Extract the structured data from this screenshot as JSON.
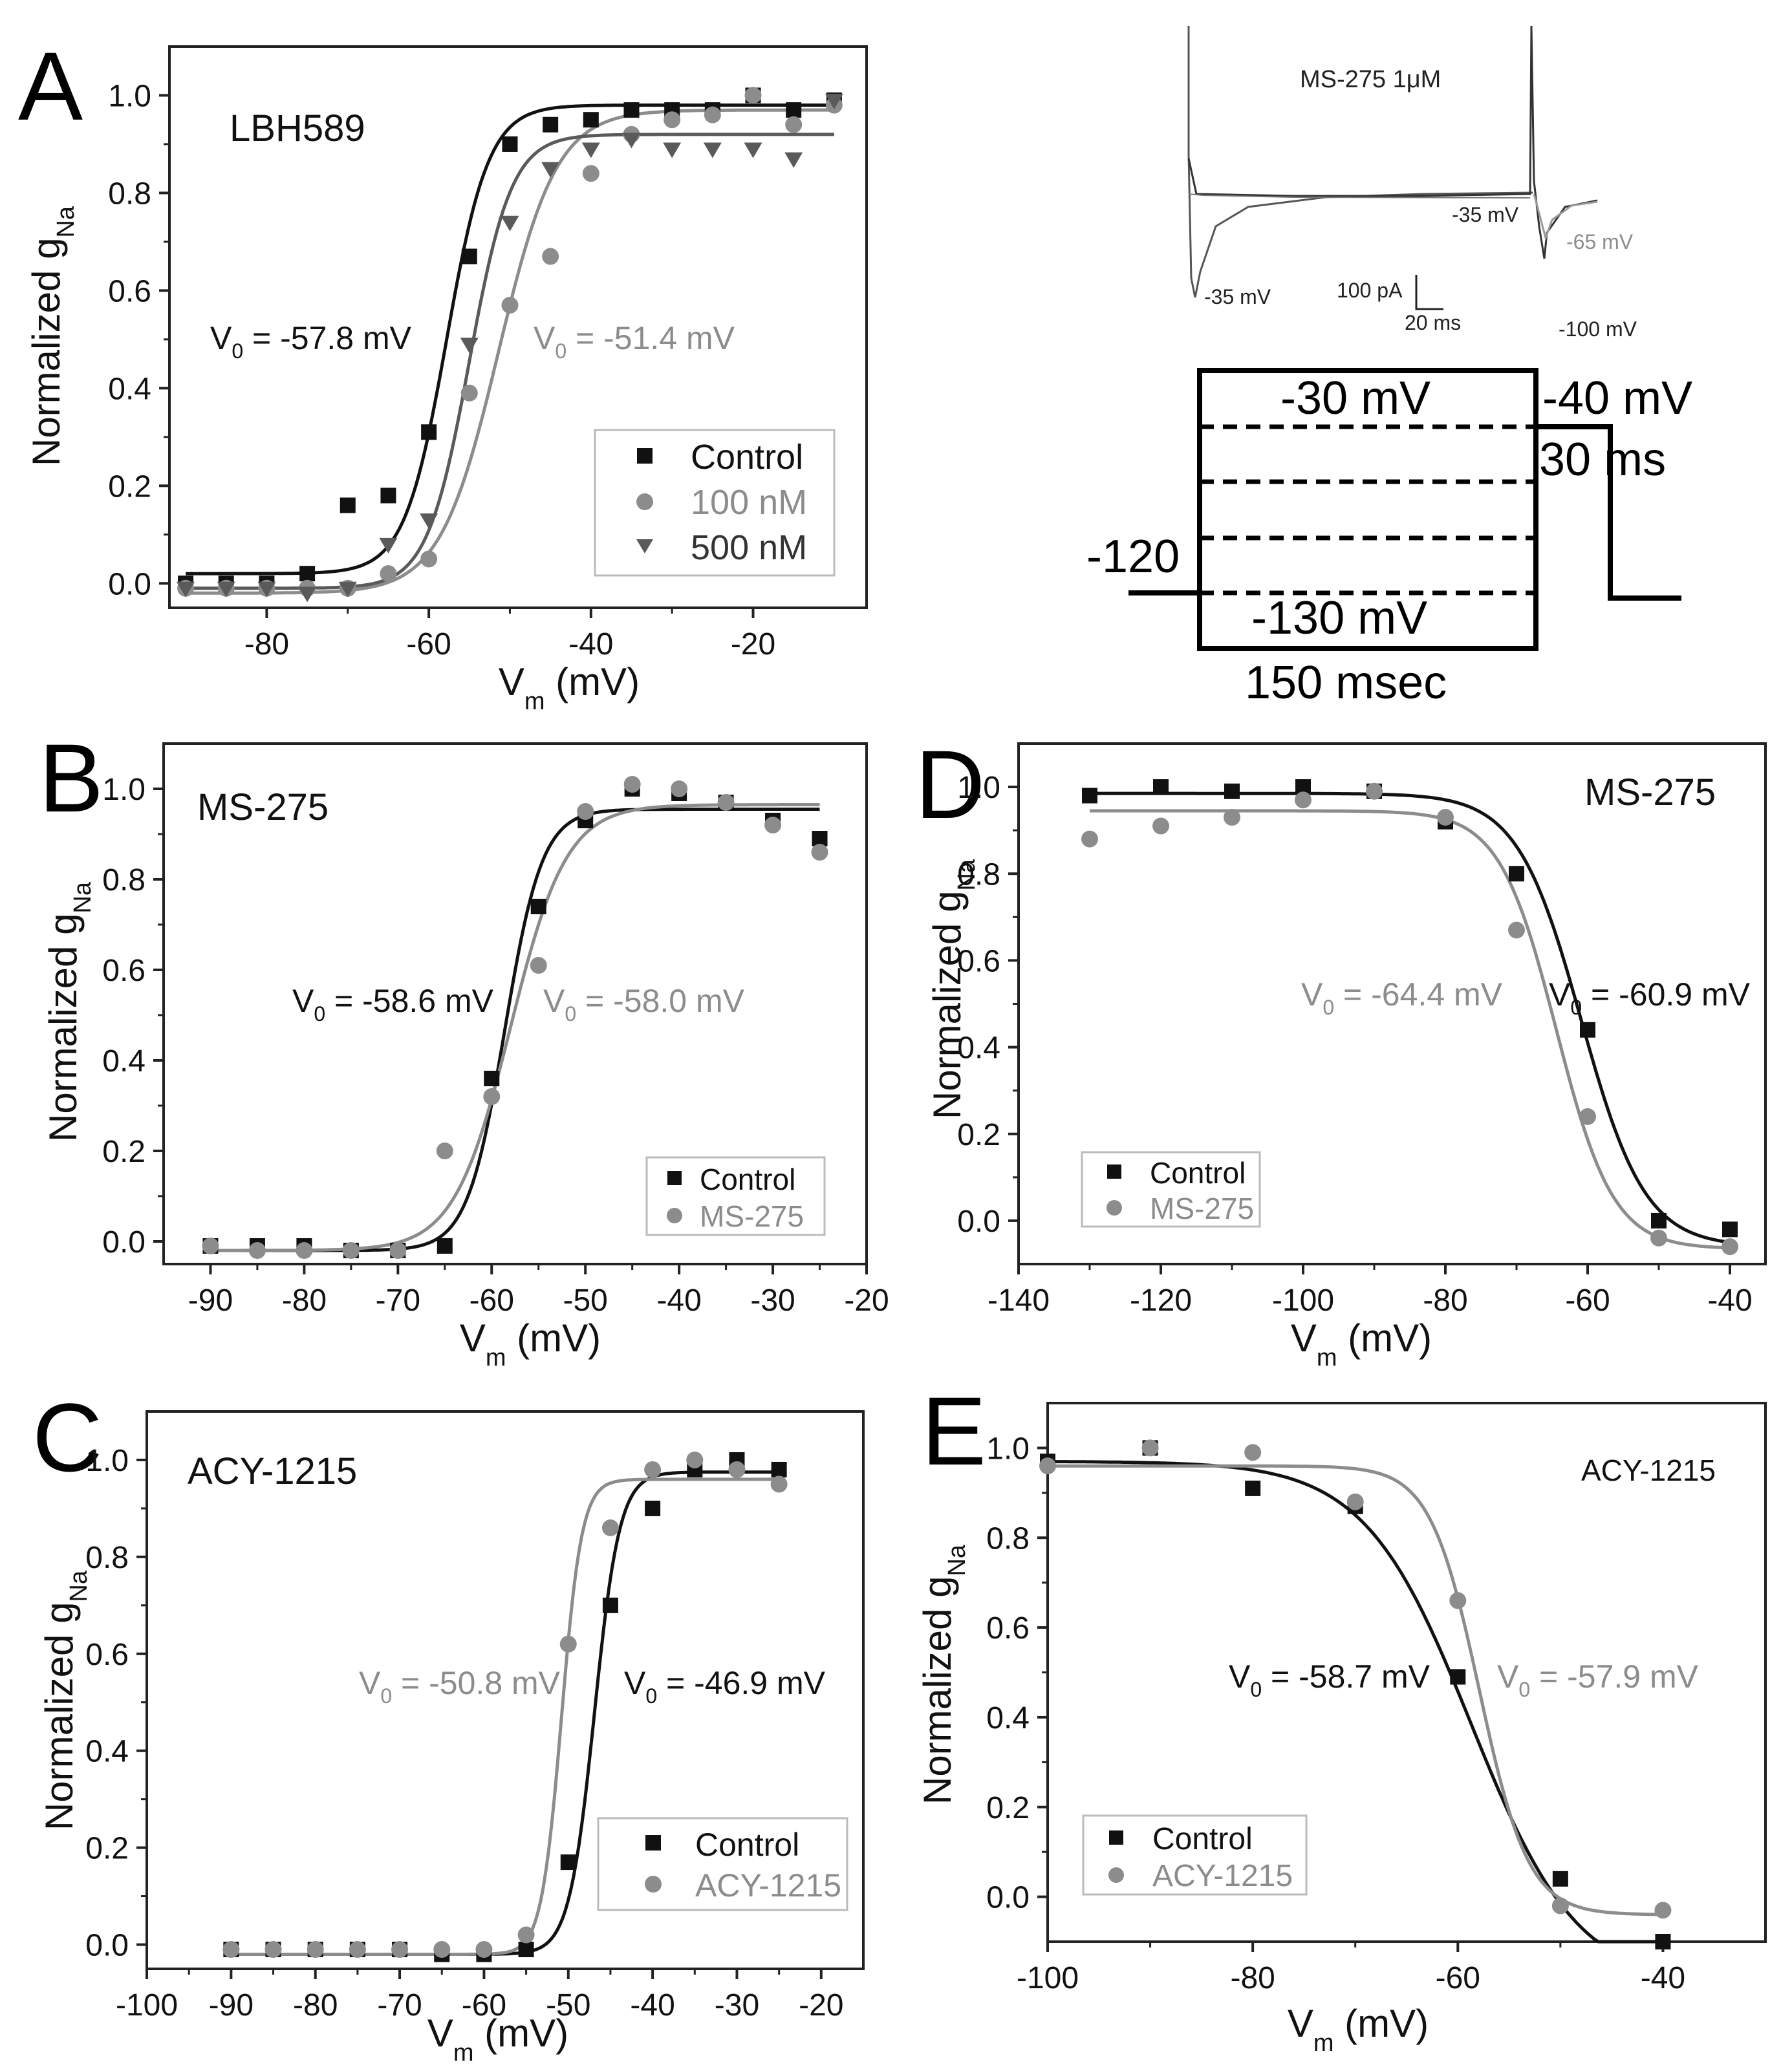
{
  "colors": {
    "black": "#111111",
    "gray": "#8c8c8c",
    "darkgray": "#5a5a5a"
  },
  "chart_data": [
    {
      "id": "A",
      "type": "scatter",
      "panel_letter": "A",
      "title": "LBH589",
      "xlabel_main": "V",
      "xlabel_sub": "m",
      "xlabel_unit": " (mV)",
      "ylabel_main": "Normalized g",
      "ylabel_sub": "Na",
      "xlim": [
        -92,
        -6
      ],
      "ylim": [
        -0.05,
        1.1
      ],
      "xticks": [
        -80,
        -60,
        -40,
        -20
      ],
      "yticks": [
        0.0,
        0.2,
        0.4,
        0.6,
        0.8,
        1.0
      ],
      "xtick_labels": [
        "-80",
        "-60",
        "-40",
        "-20"
      ],
      "ytick_labels": [
        "0.0",
        "0.2",
        "0.4",
        "0.6",
        "0.8",
        "1.0"
      ],
      "legend_position": "bottom-right",
      "series": [
        {
          "name": "Control",
          "marker": "square",
          "color": "#111111",
          "x": [
            -90,
            -85,
            -80,
            -75,
            -70,
            -65,
            -60,
            -55,
            -50,
            -45,
            -40,
            -35,
            -30,
            -25,
            -20,
            -15,
            -10
          ],
          "y": [
            0.0,
            0.0,
            0.0,
            0.02,
            0.16,
            0.18,
            0.31,
            0.67,
            0.9,
            0.94,
            0.95,
            0.97,
            0.97,
            0.97,
            1.0,
            0.97,
            0.99
          ],
          "fit": {
            "bottom": 0.02,
            "top": 0.98,
            "v0": -57.8,
            "k": 2.6,
            "direction": "up"
          },
          "v0_label": "-57.8 mV"
        },
        {
          "name": "100 nM",
          "marker": "circle",
          "color": "#8c8c8c",
          "x": [
            -90,
            -85,
            -80,
            -75,
            -70,
            -65,
            -60,
            -55,
            -50,
            -45,
            -40,
            -35,
            -30,
            -25,
            -20,
            -15,
            -10
          ],
          "y": [
            -0.01,
            -0.01,
            -0.01,
            -0.01,
            -0.01,
            0.02,
            0.05,
            0.39,
            0.57,
            0.67,
            0.84,
            0.92,
            0.95,
            0.96,
            1.0,
            0.94,
            0.98
          ],
          "fit": {
            "bottom": -0.02,
            "top": 0.97,
            "v0": -51.4,
            "k": 3.6,
            "direction": "up"
          },
          "v0_label": "-51.4 mV"
        },
        {
          "name": "500 nM",
          "marker": "triangle-down",
          "color": "#5a5a5a",
          "x": [
            -90,
            -85,
            -80,
            -75,
            -70,
            -65,
            -60,
            -55,
            -50,
            -45,
            -40,
            -35,
            -30,
            -25,
            -20,
            -15,
            -10
          ],
          "y": [
            -0.01,
            -0.01,
            -0.01,
            -0.02,
            -0.01,
            0.08,
            0.13,
            0.49,
            0.74,
            0.85,
            0.89,
            0.91,
            0.89,
            0.89,
            0.89,
            0.87,
            0.99
          ],
          "fit": {
            "bottom": -0.01,
            "top": 0.92,
            "v0": -55.0,
            "k": 2.6,
            "direction": "up"
          }
        }
      ]
    },
    {
      "id": "B",
      "type": "scatter",
      "panel_letter": "B",
      "title": "MS-275",
      "xlabel_main": "V",
      "xlabel_sub": "m",
      "xlabel_unit": " (mV)",
      "ylabel_main": "Normalized g",
      "ylabel_sub": "Na",
      "xlim": [
        -95,
        -20
      ],
      "ylim": [
        -0.05,
        1.1
      ],
      "xticks": [
        -90,
        -80,
        -70,
        -60,
        -50,
        -40,
        -30,
        -20
      ],
      "yticks": [
        0.0,
        0.2,
        0.4,
        0.6,
        0.8,
        1.0
      ],
      "xtick_labels": [
        "-90",
        "-80",
        "-70",
        "-60",
        "-50",
        "-40",
        "-30",
        "-20"
      ],
      "ytick_labels": [
        "0.0",
        "0.2",
        "0.4",
        "0.6",
        "0.8",
        "1.0"
      ],
      "legend_position": "bottom-right",
      "series": [
        {
          "name": "Control",
          "marker": "square",
          "color": "#111111",
          "x": [
            -90,
            -85,
            -80,
            -75,
            -70,
            -65,
            -60,
            -55,
            -50,
            -45,
            -40,
            -35,
            -30,
            -25
          ],
          "y": [
            -0.01,
            -0.01,
            -0.01,
            -0.02,
            -0.02,
            -0.01,
            0.36,
            0.74,
            0.93,
            1.0,
            0.99,
            0.97,
            0.93,
            0.89
          ],
          "fit": {
            "bottom": -0.02,
            "top": 0.955,
            "v0": -58.6,
            "k": 2.0,
            "direction": "up"
          },
          "v0_label": "-58.6 mV"
        },
        {
          "name": "MS-275",
          "marker": "circle",
          "color": "#8c8c8c",
          "x": [
            -90,
            -85,
            -80,
            -75,
            -70,
            -65,
            -60,
            -55,
            -50,
            -45,
            -40,
            -35,
            -30,
            -25
          ],
          "y": [
            -0.01,
            -0.02,
            -0.02,
            -0.02,
            -0.02,
            0.2,
            0.32,
            0.61,
            0.95,
            1.01,
            1.0,
            0.97,
            0.92,
            0.86
          ],
          "fit": {
            "bottom": -0.02,
            "top": 0.965,
            "v0": -58.0,
            "k": 3.0,
            "direction": "up"
          },
          "v0_label": "-58.0 mV"
        }
      ]
    },
    {
      "id": "C",
      "type": "scatter",
      "panel_letter": "C",
      "title": "ACY-1215",
      "xlabel_main": "V",
      "xlabel_sub": "m",
      "xlabel_unit": " (mV)",
      "ylabel_main": "Normalized g",
      "ylabel_sub": "Na",
      "xlim": [
        -100,
        -15
      ],
      "ylim": [
        -0.05,
        1.1
      ],
      "xticks": [
        -100,
        -90,
        -80,
        -70,
        -60,
        -50,
        -40,
        -30,
        -20
      ],
      "yticks": [
        0.0,
        0.2,
        0.4,
        0.6,
        0.8,
        1.0
      ],
      "xtick_labels": [
        "-100",
        "-90",
        "-80",
        "-70",
        "-60",
        "-50",
        "-40",
        "-30",
        "-20"
      ],
      "ytick_labels": [
        "0.0",
        "0.2",
        "0.4",
        "0.6",
        "0.8",
        "1.0"
      ],
      "legend_position": "bottom-right",
      "series": [
        {
          "name": "Control",
          "marker": "square",
          "color": "#111111",
          "x": [
            -90,
            -85,
            -80,
            -75,
            -70,
            -65,
            -60,
            -55,
            -50,
            -45,
            -40,
            -35,
            -30,
            -25
          ],
          "y": [
            -0.01,
            -0.01,
            -0.01,
            -0.01,
            -0.01,
            -0.02,
            -0.02,
            -0.01,
            0.17,
            0.7,
            0.9,
            0.98,
            1.0,
            0.98
          ],
          "fit": {
            "bottom": -0.02,
            "top": 0.975,
            "v0": -46.9,
            "k": 1.5,
            "direction": "up"
          },
          "v0_label": "-46.9 mV"
        },
        {
          "name": "ACY-1215",
          "marker": "circle",
          "color": "#8c8c8c",
          "x": [
            -90,
            -85,
            -80,
            -75,
            -70,
            -65,
            -60,
            -55,
            -50,
            -45,
            -40,
            -35,
            -30,
            -25
          ],
          "y": [
            -0.01,
            -0.01,
            -0.01,
            -0.01,
            -0.01,
            -0.01,
            -0.01,
            0.02,
            0.62,
            0.86,
            0.98,
            1.0,
            0.98,
            0.95
          ],
          "fit": {
            "bottom": -0.02,
            "top": 0.96,
            "v0": -50.8,
            "k": 1.2,
            "direction": "up"
          },
          "v0_label": "-50.8 mV"
        }
      ]
    },
    {
      "id": "D",
      "type": "scatter",
      "panel_letter": "D",
      "title": "MS-275",
      "xlabel_main": "V",
      "xlabel_sub": "m",
      "xlabel_unit": " (mV)",
      "ylabel_main": "Normalized g",
      "ylabel_sub": "Na",
      "xlim": [
        -140,
        -35
      ],
      "ylim": [
        -0.1,
        1.1
      ],
      "xticks": [
        -140,
        -120,
        -100,
        -80,
        -60,
        -40
      ],
      "yticks": [
        0.0,
        0.2,
        0.4,
        0.6,
        0.8,
        1.0
      ],
      "xtick_labels": [
        "-140",
        "-120",
        "-100",
        "-80",
        "-60",
        "-40"
      ],
      "ytick_labels": [
        "0.0",
        "0.2",
        "0.4",
        "0.6",
        "0.8",
        "1.0"
      ],
      "legend_position": "bottom-left",
      "series": [
        {
          "name": "Control",
          "marker": "square",
          "color": "#111111",
          "x": [
            -130,
            -120,
            -110,
            -100,
            -90,
            -80,
            -70,
            -60,
            -50,
            -40
          ],
          "y": [
            0.98,
            1.0,
            0.99,
            1.0,
            0.99,
            0.92,
            0.8,
            0.44,
            0.0,
            -0.02
          ],
          "fit": {
            "bottom": -0.06,
            "top": 0.985,
            "v0": -60.9,
            "k": 4.5,
            "direction": "down"
          },
          "v0_label": "-60.9 mV"
        },
        {
          "name": "MS-275",
          "marker": "circle",
          "color": "#8c8c8c",
          "x": [
            -130,
            -120,
            -110,
            -100,
            -90,
            -80,
            -70,
            -60,
            -50,
            -40
          ],
          "y": [
            0.88,
            0.91,
            0.93,
            0.97,
            0.99,
            0.93,
            0.67,
            0.24,
            -0.04,
            -0.06
          ],
          "fit": {
            "bottom": -0.065,
            "top": 0.945,
            "v0": -64.4,
            "k": 4.0,
            "direction": "down"
          },
          "v0_label": "-64.4 mV"
        }
      ]
    },
    {
      "id": "E",
      "type": "scatter",
      "panel_letter": "E",
      "title": "ACY-1215",
      "xlabel_main": "V",
      "xlabel_sub": "m",
      "xlabel_unit": " (mV)",
      "ylabel_main": "Normalized g",
      "ylabel_sub": "Na",
      "xlim": [
        -100,
        -30
      ],
      "ylim": [
        -0.1,
        1.1
      ],
      "xticks": [
        -100,
        -80,
        -60,
        -40
      ],
      "yticks": [
        0.0,
        0.2,
        0.4,
        0.6,
        0.8,
        1.0
      ],
      "xtick_labels": [
        "-100",
        "-80",
        "-60",
        "-40"
      ],
      "ytick_labels": [
        "0.0",
        "0.2",
        "0.4",
        "0.6",
        "0.8",
        "1.0"
      ],
      "legend_position": "bottom-left",
      "series": [
        {
          "name": "Control",
          "marker": "square",
          "color": "#111111",
          "x": [
            -100,
            -90,
            -80,
            -70,
            -60,
            -50,
            -40
          ],
          "y": [
            0.97,
            1.0,
            0.91,
            0.87,
            0.49,
            0.04,
            -0.1
          ],
          "fit": {
            "bottom": -0.2,
            "top": 0.97,
            "v0": -58.7,
            "k": 5.2,
            "direction": "down"
          },
          "v0_label": "-58.7 mV"
        },
        {
          "name": "ACY-1215",
          "marker": "circle",
          "color": "#8c8c8c",
          "x": [
            -100,
            -90,
            -80,
            -70,
            -60,
            -50,
            -40
          ],
          "y": [
            0.96,
            1.0,
            0.99,
            0.88,
            0.66,
            -0.02,
            -0.03
          ],
          "fit": {
            "bottom": -0.04,
            "top": 0.96,
            "v0": -57.9,
            "k": 2.4,
            "direction": "down"
          },
          "v0_label": "-57.9 mV"
        }
      ]
    }
  ],
  "v0_prefix": "V",
  "v0_sub": "0",
  "v0_eq": " = ",
  "inset_traces": {
    "title": "MS-275 1μM",
    "labels": [
      "-35 mV",
      "-35 mV",
      "-65 mV",
      "-100 mV"
    ],
    "scale_current": "100 pA",
    "scale_time": "20 ms"
  },
  "protocol": {
    "top_label": "-30 mV",
    "test_label": "-40 mV",
    "test_duration": "30 ms",
    "holding_label": "-120",
    "bottom_label": "-130 mV",
    "prepulse_duration": "150 msec"
  }
}
